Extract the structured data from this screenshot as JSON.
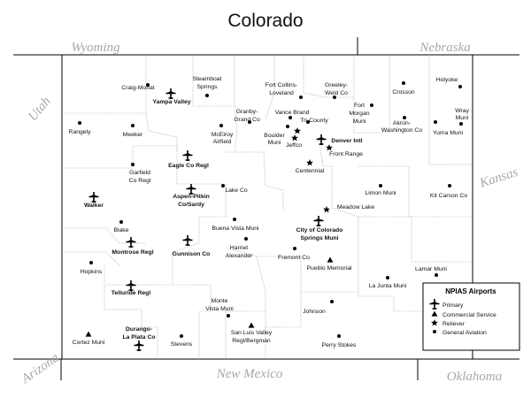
{
  "title": "Colorado",
  "neighbors": {
    "wyoming": "Wyoming",
    "nebraska": "Nebraska",
    "utah": "Utah",
    "kansas": "Kansas",
    "arizona": "Arizona",
    "new_mexico": "New Mexico",
    "oklahoma": "Oklahoma"
  },
  "legend": {
    "title": "NPIAS Airports",
    "items": [
      {
        "symbol": "primary",
        "label": "Primary"
      },
      {
        "symbol": "commercial",
        "label": "Commercial Service"
      },
      {
        "symbol": "reliever",
        "label": "Reliever"
      },
      {
        "symbol": "general",
        "label": "General Aviation"
      }
    ]
  },
  "airports": [
    {
      "id": "craig",
      "label": "Craig-Moffat",
      "type": "general"
    },
    {
      "id": "yampa",
      "label": "Yampa Valley",
      "type": "primary"
    },
    {
      "id": "steamboat",
      "label1": "Steamboat",
      "label2": "Springs",
      "type": "general"
    },
    {
      "id": "fortcollins",
      "label1": "Fort Collins-",
      "label2": "Loveland",
      "type": "general"
    },
    {
      "id": "greeley",
      "label1": "Greeley-",
      "label2": "Weld Co",
      "type": "general"
    },
    {
      "id": "crosson",
      "label": "Crosson",
      "type": "general"
    },
    {
      "id": "holyoke",
      "label": "Holyoke",
      "type": "general"
    },
    {
      "id": "rangely",
      "label": "Rangely",
      "type": "general"
    },
    {
      "id": "meeker",
      "label": "Meeker",
      "type": "general"
    },
    {
      "id": "granby",
      "label1": "Granby-",
      "label2": "Grand Co",
      "type": "general"
    },
    {
      "id": "mcelroy",
      "label1": "McElroy",
      "label2": "Airfield",
      "type": "general"
    },
    {
      "id": "vancebrand",
      "label": "Vance Brand",
      "type": "general"
    },
    {
      "id": "tricounty",
      "label": "Tri-County",
      "type": "general"
    },
    {
      "id": "boulder",
      "label1": "Boulder",
      "label2": "Muni",
      "type": "general"
    },
    {
      "id": "jeffco",
      "label": "Jeffco",
      "type": "reliever"
    },
    {
      "id": "denver",
      "label": "Denver Intl",
      "type": "primary"
    },
    {
      "id": "frontrange",
      "label": "Front Range",
      "type": "reliever"
    },
    {
      "id": "fortmorgan",
      "label1": "Fort",
      "label2": "Morgan",
      "label3": "Muni",
      "type": "general"
    },
    {
      "id": "akron",
      "label1": "Akron-",
      "label2": "Washington Co",
      "type": "general"
    },
    {
      "id": "yuma",
      "label": "Yuma Muni",
      "type": "general"
    },
    {
      "id": "wray",
      "label1": "Wray",
      "label2": "Muni",
      "type": "general"
    },
    {
      "id": "centennial",
      "label": "Centennial",
      "type": "reliever"
    },
    {
      "id": "eagle",
      "label": "Eagle Co Regl",
      "type": "primary"
    },
    {
      "id": "garfield",
      "label1": "Garfield",
      "label2": "Co Regl",
      "type": "general"
    },
    {
      "id": "aspen",
      "label1": "Aspen-Pitkin",
      "label2": "Co/Sardy",
      "type": "primary"
    },
    {
      "id": "lakeco",
      "label": "Lake Co",
      "type": "general"
    },
    {
      "id": "walker",
      "label": "Walker",
      "type": "primary"
    },
    {
      "id": "limon",
      "label": "Limon Muni",
      "type": "general"
    },
    {
      "id": "kitcarson",
      "label": "Kit Carson Co",
      "type": "general"
    },
    {
      "id": "meadowlake",
      "label": "Meadow Lake",
      "type": "reliever"
    },
    {
      "id": "blake",
      "label": "Blake",
      "type": "general"
    },
    {
      "id": "buenavista",
      "label": "Buena Vista Muni",
      "type": "general"
    },
    {
      "id": "cos",
      "label1": "City of Colorado",
      "label2": "Springs Muni",
      "type": "primary"
    },
    {
      "id": "montrose",
      "label": "Montrose Regl",
      "type": "primary"
    },
    {
      "id": "gunnison",
      "label": "Gunnison Co",
      "type": "primary"
    },
    {
      "id": "harriet",
      "label1": "Harriet",
      "label2": "Alexander",
      "type": "general"
    },
    {
      "id": "fremont",
      "label": "Fremont Co",
      "type": "general"
    },
    {
      "id": "hopkins",
      "label": "Hopkins",
      "type": "general"
    },
    {
      "id": "pueblo",
      "label": "Pueblo Memorial",
      "type": "commercial"
    },
    {
      "id": "lamar",
      "label": "Lamar Muni",
      "type": "general"
    },
    {
      "id": "lajunta",
      "label": "La Junta Muni",
      "type": "general"
    },
    {
      "id": "telluride",
      "label": "Telluride Regl",
      "type": "primary"
    },
    {
      "id": "montevista",
      "label1": "Monte",
      "label2": "Vista Muni",
      "type": "general"
    },
    {
      "id": "johnson",
      "label": "Johnson",
      "type": "general"
    },
    {
      "id": "durango",
      "label1": "Durango-",
      "label2": "La Plata Co",
      "type": "primary"
    },
    {
      "id": "cortez",
      "label": "Cortez Muni",
      "type": "commercial"
    },
    {
      "id": "stevens",
      "label": "Stevens",
      "type": "general"
    },
    {
      "id": "sanluis",
      "label1": "San Luis Valley",
      "label2": "Regl/Bergman",
      "type": "commercial"
    },
    {
      "id": "perrystokes",
      "label": "Perry Stokes",
      "type": "general"
    }
  ]
}
